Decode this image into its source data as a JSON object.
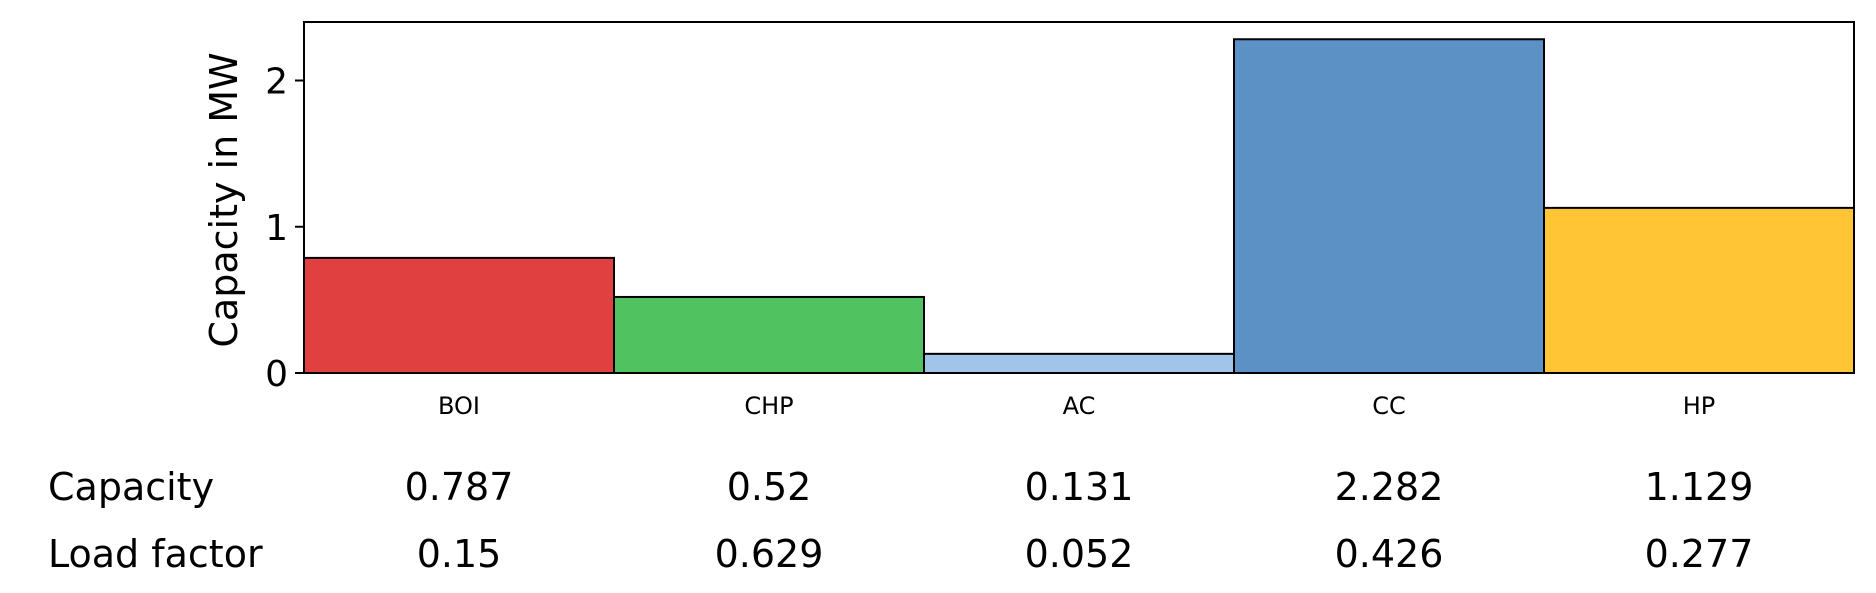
{
  "chart_data": {
    "type": "bar",
    "title": "",
    "xlabel": "",
    "ylabel": "Capacity in MW",
    "ylim": [
      0,
      2.4
    ],
    "yticks": [
      0,
      1,
      2
    ],
    "categories": [
      "BOI",
      "CHP",
      "AC",
      "CC",
      "HP"
    ],
    "values": [
      0.787,
      0.52,
      0.131,
      2.282,
      1.129
    ],
    "colors": [
      "#e04040",
      "#50c260",
      "#a0c4ea",
      "#5b91c4",
      "#ffc534"
    ],
    "bar_edge_color": "#000000",
    "grid": false,
    "legend": "none",
    "table": {
      "rows": [
        {
          "label": "Capacity",
          "values": [
            "0.787",
            "0.52",
            "0.131",
            "2.282",
            "1.129"
          ]
        },
        {
          "label": "Load factor",
          "values": [
            "0.15",
            "0.629",
            "0.052",
            "0.426",
            "0.277"
          ]
        }
      ]
    }
  }
}
